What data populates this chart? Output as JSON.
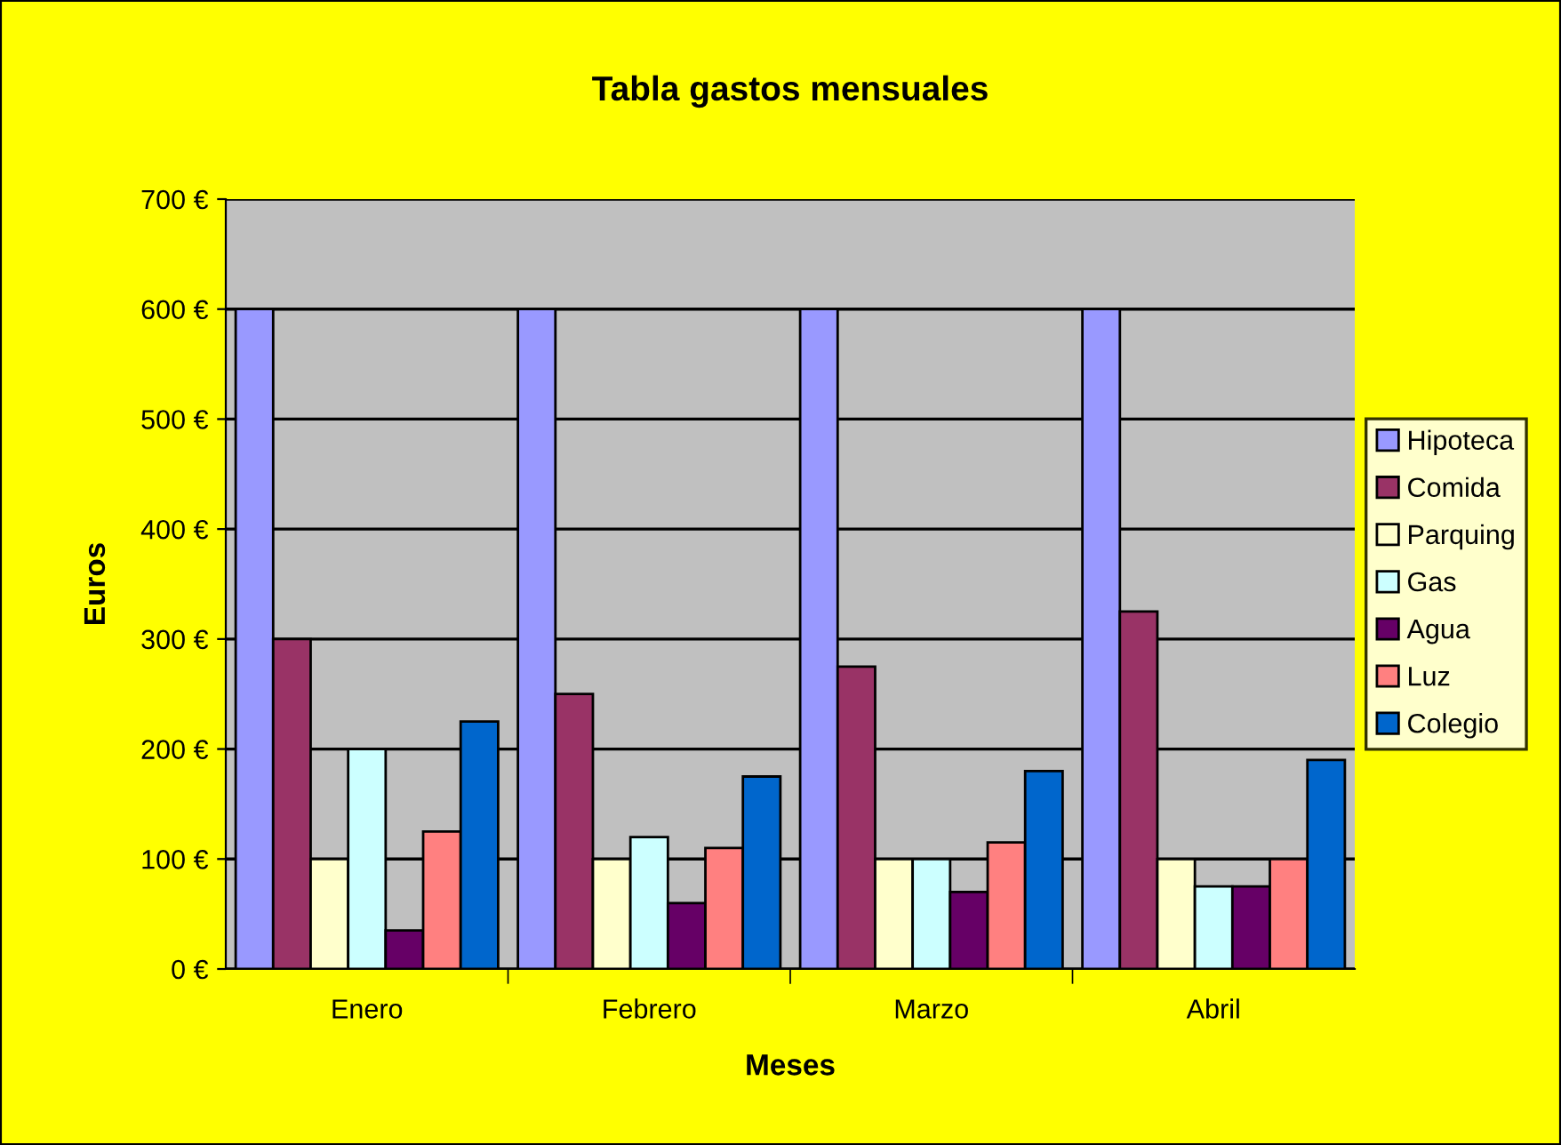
{
  "chart_data": {
    "type": "bar",
    "title": "Tabla gastos mensuales",
    "xlabel": "Meses",
    "ylabel": "Euros",
    "categories": [
      "Enero",
      "Febrero",
      "Marzo",
      "Abril"
    ],
    "series": [
      {
        "name": "Hipoteca",
        "color": "#9999ff",
        "values": [
          600,
          600,
          600,
          600
        ]
      },
      {
        "name": "Comida",
        "color": "#993366",
        "values": [
          300,
          250,
          275,
          325
        ]
      },
      {
        "name": "Parquing",
        "color": "#ffffcc",
        "values": [
          100,
          100,
          100,
          100
        ]
      },
      {
        "name": "Gas",
        "color": "#ccffff",
        "values": [
          200,
          120,
          100,
          75
        ]
      },
      {
        "name": "Agua",
        "color": "#660066",
        "values": [
          35,
          60,
          70,
          75
        ]
      },
      {
        "name": "Luz",
        "color": "#ff8080",
        "values": [
          125,
          110,
          115,
          100
        ]
      },
      {
        "name": "Colegio",
        "color": "#0066cc",
        "values": [
          225,
          175,
          180,
          190
        ]
      }
    ],
    "ylim": [
      0,
      700
    ],
    "yticks": [
      {
        "value": 0,
        "label": "0 €"
      },
      {
        "value": 100,
        "label": "100 €"
      },
      {
        "value": 200,
        "label": "200 €"
      },
      {
        "value": 300,
        "label": "300 €"
      },
      {
        "value": 400,
        "label": "400 €"
      },
      {
        "value": 500,
        "label": "500 €"
      },
      {
        "value": 600,
        "label": "600 €"
      },
      {
        "value": 700,
        "label": "700 €"
      }
    ],
    "grid": "y",
    "legend": "right"
  }
}
